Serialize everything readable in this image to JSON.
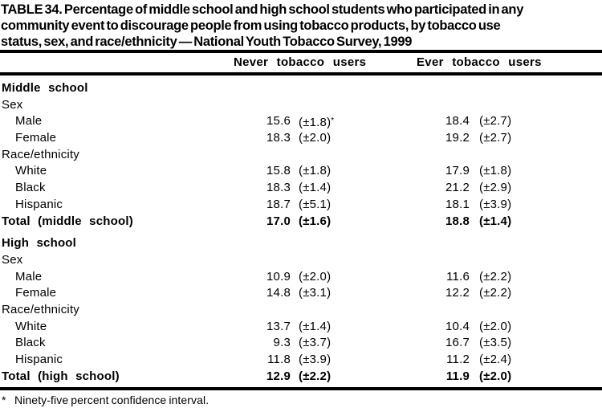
{
  "title": {
    "lines": [
      "TABLE 34. Percentage of middle school and high school students who participated in any",
      "community event to discourage people from using tobacco products, by tobacco use",
      "status, sex, and race/ethnicity — National Youth Tobacco Survey, 1999"
    ]
  },
  "columns": {
    "never": "Never tobacco users",
    "ever": "Ever tobacco users"
  },
  "table": {
    "sections": [
      {
        "name": "Middle school",
        "rows": [
          {
            "label": "Sex"
          },
          {
            "label": "Male",
            "never": "15.6",
            "never_ci": "(±1.8)",
            "never_note": "*",
            "ever": "18.4",
            "ever_ci": "(±2.7)"
          },
          {
            "label": "Female",
            "never": "18.3",
            "never_ci": "(±2.0)",
            "ever": "19.2",
            "ever_ci": "(±2.7)"
          },
          {
            "label": "Race/ethnicity"
          },
          {
            "label": "White",
            "never": "15.8",
            "never_ci": "(±1.8)",
            "ever": "17.9",
            "ever_ci": "(±1.8)"
          },
          {
            "label": "Black",
            "never": "18.3",
            "never_ci": "(±1.4)",
            "ever": "21.2",
            "ever_ci": "(±2.9)"
          },
          {
            "label": "Hispanic",
            "never": "18.7",
            "never_ci": "(±5.1)",
            "ever": "18.1",
            "ever_ci": "(±3.9)"
          },
          {
            "label": "Total (middle school)",
            "never": "17.0",
            "never_ci": "(±1.6)",
            "ever": "18.8",
            "ever_ci": "(±1.4)"
          }
        ]
      },
      {
        "name": "High school",
        "rows": [
          {
            "label": "Sex"
          },
          {
            "label": "Male",
            "never": "10.9",
            "never_ci": "(±2.0)",
            "ever": "11.6",
            "ever_ci": "(±2.2)"
          },
          {
            "label": "Female",
            "never": "14.8",
            "never_ci": "(±3.1)",
            "ever": "12.2",
            "ever_ci": "(±2.2)"
          },
          {
            "label": "Race/ethnicity"
          },
          {
            "label": "White",
            "never": "13.7",
            "never_ci": "(±1.4)",
            "ever": "10.4",
            "ever_ci": "(±2.0)"
          },
          {
            "label": "Black",
            "never": "9.3",
            "never_ci": "(±3.7)",
            "ever": "16.7",
            "ever_ci": "(±3.5)"
          },
          {
            "label": "Hispanic",
            "never": "11.8",
            "never_ci": "(±3.9)",
            "ever": "11.2",
            "ever_ci": "(±2.4)"
          },
          {
            "label": "Total (high school)",
            "never": "12.9",
            "never_ci": "(±2.2)",
            "ever": "11.9",
            "ever_ci": "(±2.0)"
          }
        ]
      }
    ]
  },
  "footnote": {
    "marker": "*",
    "text": "Ninety-five percent confidence interval."
  },
  "colors": {
    "text": "#000000",
    "background": "#ffffff",
    "rule": "#000000"
  }
}
